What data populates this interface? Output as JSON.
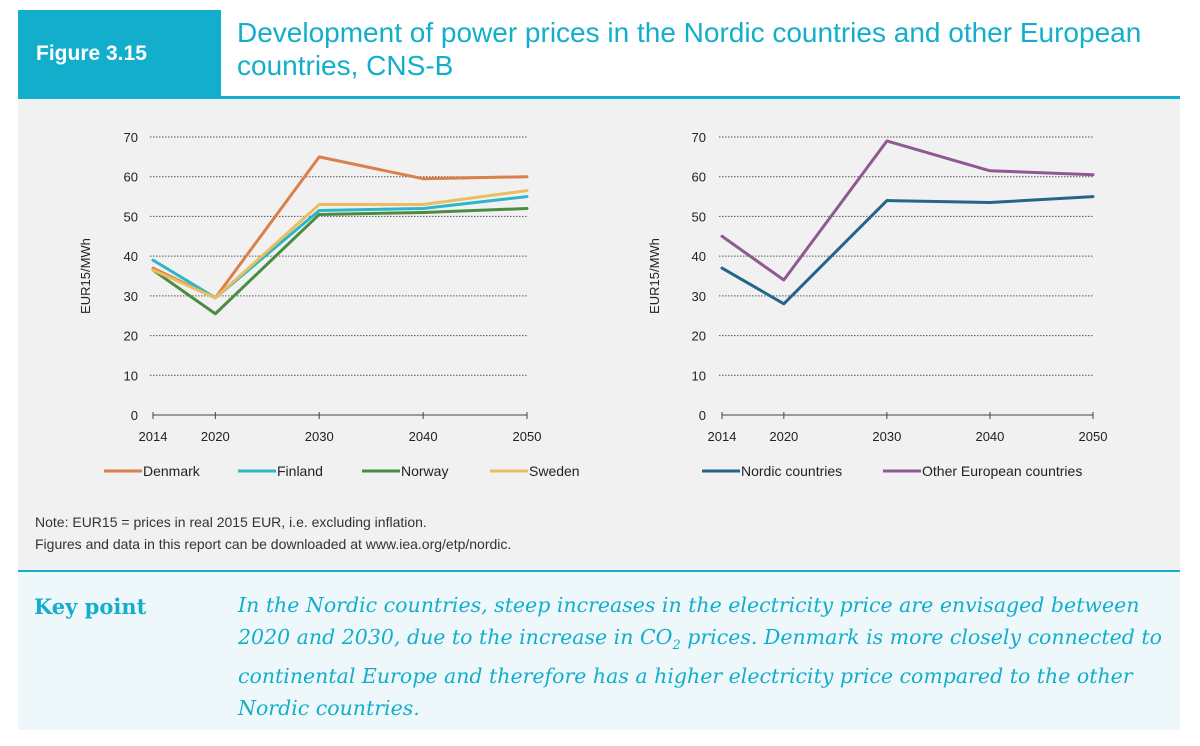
{
  "figure": {
    "label": "Figure 3.15",
    "title": "Development of power prices in the Nordic countries and other European countries, CNS-B"
  },
  "note": {
    "line1": "Note: EUR15 = prices in real 2015 EUR, i.e. excluding inflation.",
    "line2": "Figures and data in this report can be downloaded at www.iea.org/etp/nordic."
  },
  "key_point": {
    "label": "Key point",
    "text_before_sub": "In the Nordic countries, steep increases in the electricity price are envisaged between 2020 and 2030, due to the increase in CO",
    "sub": "2",
    "text_after_sub": " prices. Denmark is more closely connected to continental Europe and therefore has a higher electricity price compared to the other Nordic countries."
  },
  "colors": {
    "accent": "#13aecb",
    "denmark": "#d9804b",
    "finland": "#2db5c8",
    "norway": "#4b8c43",
    "sweden": "#ebbd5e",
    "nordic": "#23668a",
    "other_european": "#8f5a93"
  },
  "chart_data": [
    {
      "type": "line",
      "title": "",
      "xlabel": "",
      "ylabel": "EUR15/MWh",
      "x": [
        2014,
        2020,
        2030,
        2040,
        2050
      ],
      "x_ticks": [
        2014,
        2020,
        2030,
        2040,
        2050
      ],
      "y_ticks": [
        0,
        10,
        20,
        30,
        40,
        50,
        60,
        70
      ],
      "ylim": [
        0,
        70
      ],
      "grid": "dotted horizontal",
      "legend_position": "bottom",
      "series": [
        {
          "name": "Denmark",
          "color": "#d9804b",
          "values": [
            37,
            29.5,
            65,
            59.5,
            60
          ]
        },
        {
          "name": "Finland",
          "color": "#2db5c8",
          "values": [
            39,
            29.5,
            51.5,
            52,
            55
          ]
        },
        {
          "name": "Norway",
          "color": "#4b8c43",
          "values": [
            36.5,
            25.5,
            50.5,
            51,
            52
          ]
        },
        {
          "name": "Sweden",
          "color": "#ebbd5e",
          "values": [
            36.5,
            29.5,
            53,
            53,
            56.5
          ]
        }
      ]
    },
    {
      "type": "line",
      "title": "",
      "xlabel": "",
      "ylabel": "EUR15/MWh",
      "x": [
        2014,
        2020,
        2030,
        2040,
        2050
      ],
      "x_ticks": [
        2014,
        2020,
        2030,
        2040,
        2050
      ],
      "y_ticks": [
        0,
        10,
        20,
        30,
        40,
        50,
        60,
        70
      ],
      "ylim": [
        0,
        70
      ],
      "grid": "dotted horizontal",
      "legend_position": "bottom",
      "series": [
        {
          "name": "Nordic countries",
          "color": "#23668a",
          "values": [
            37,
            28,
            54,
            53.5,
            55
          ]
        },
        {
          "name": "Other European countries",
          "color": "#8f5a93",
          "values": [
            45,
            34,
            69,
            61.5,
            60.5
          ]
        }
      ]
    }
  ]
}
